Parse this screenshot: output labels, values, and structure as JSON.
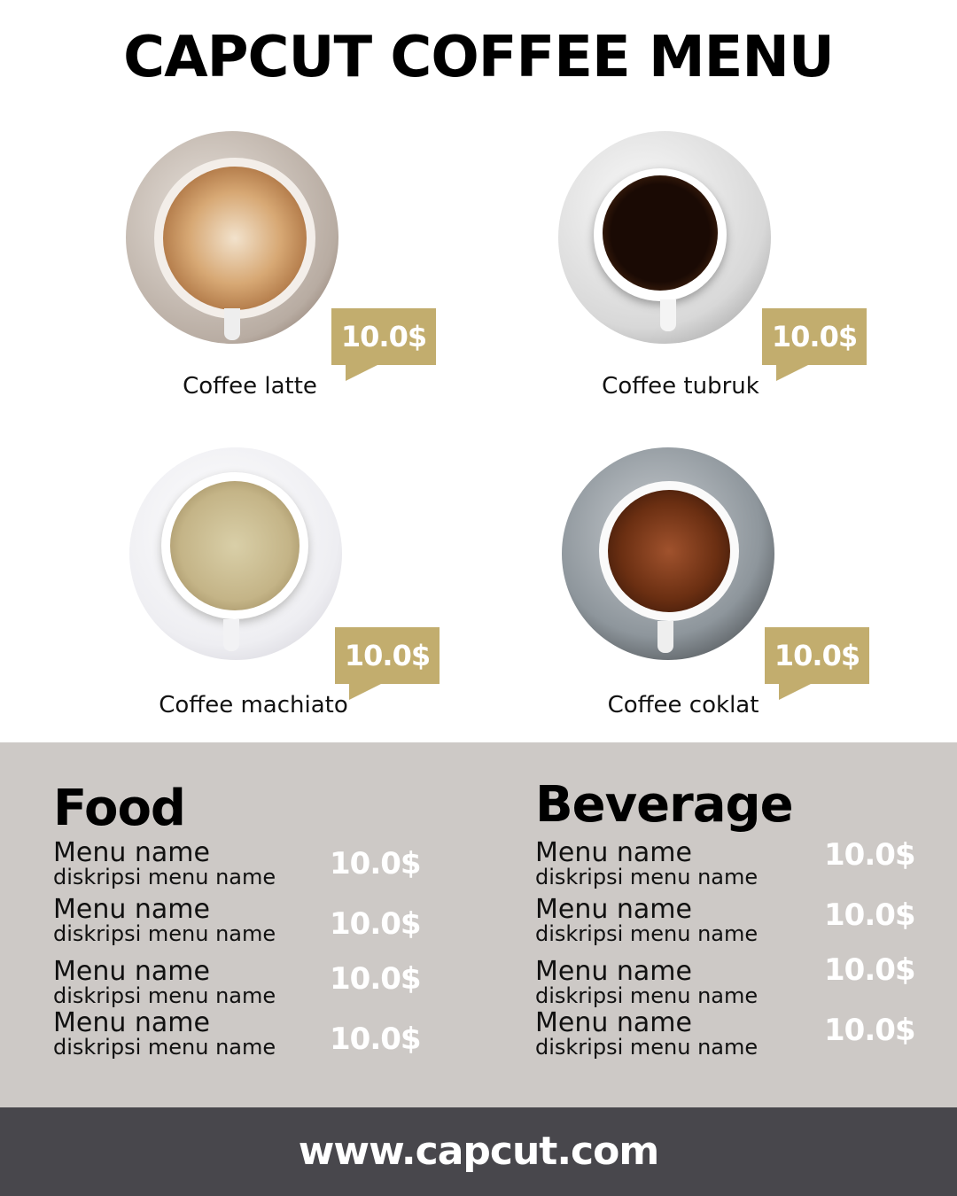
{
  "title": "CAPCUT COFFEE MENU",
  "colors": {
    "accent": "#c2ad6e",
    "band": "#cdc9c6",
    "footer": "#48474c"
  },
  "coffees": [
    {
      "name": "Coffee latte",
      "price": "10.0$"
    },
    {
      "name": "Coffee tubruk",
      "price": "10.0$"
    },
    {
      "name": "Coffee machiato",
      "price": "10.0$"
    },
    {
      "name": "Coffee coklat",
      "price": "10.0$"
    }
  ],
  "food": {
    "heading": "Food",
    "items": [
      {
        "name": "Menu name",
        "desc": "diskripsi menu name",
        "price": "10.0$"
      },
      {
        "name": "Menu name",
        "desc": "diskripsi menu name",
        "price": "10.0$"
      },
      {
        "name": "Menu name",
        "desc": "diskripsi menu name",
        "price": "10.0$"
      },
      {
        "name": "Menu name",
        "desc": "diskripsi menu name",
        "price": "10.0$"
      }
    ]
  },
  "beverage": {
    "heading": "Beverage",
    "items": [
      {
        "name": "Menu name",
        "desc": "diskripsi menu name",
        "price": "10.0$"
      },
      {
        "name": "Menu name",
        "desc": "diskripsi menu name",
        "price": "10.0$"
      },
      {
        "name": "Menu name",
        "desc": "diskripsi menu name",
        "price": "10.0$"
      },
      {
        "name": "Menu name",
        "desc": "diskripsi menu name",
        "price": "10.0$"
      }
    ]
  },
  "footer": {
    "url": "www.capcut.com"
  }
}
